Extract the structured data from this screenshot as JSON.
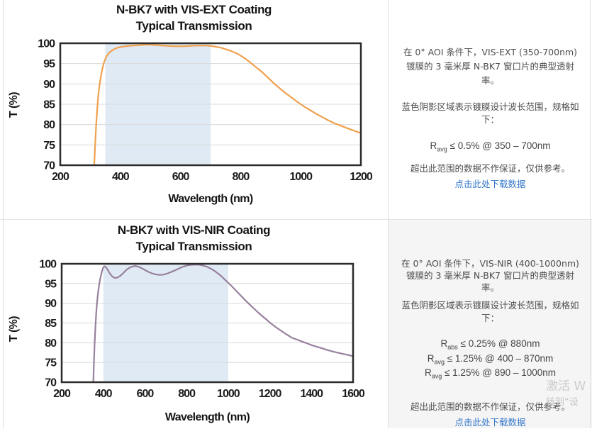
{
  "colors": {
    "chart1_line": "#F0A14F",
    "chart2_line": "#97819D",
    "design_band_shade": "#DFEAF5",
    "gridline": "#D9D9D9",
    "plot_border": "#2B2B2B",
    "link_blue": "#3377C9",
    "bottom_panel_bg": "#F5F5F6",
    "watermark_gray": "#CBCBCB"
  },
  "info_top": {
    "description": "在 0° AOI 条件下，VIS-EXT (350-700nm) 镀膜的 3 毫米厚 N-BK7 窗口片的典型透射率。",
    "shading_note": "蓝色阴影区域表示镀膜设计波长范围，规格如下：",
    "specs": [
      {
        "base": "R",
        "sub": "avg",
        "rest": " ≤ 0.5% @ 350 – 700nm"
      }
    ],
    "disclaimer": "超出此范围的数据不作保证，仅供参考。",
    "download_link": "点击此处下载数据"
  },
  "info_bottom": {
    "description": "在 0° AOI 条件下，VIS-NIR (400-1000nm) 镀膜的 3 毫米厚 N-BK7 窗口片的典型透射率。",
    "shading_note": "蓝色阴影区域表示镀膜设计波长范围，规格如下：",
    "specs": [
      {
        "base": "R",
        "sub": "abs",
        "rest": " ≤ 0.25% @ 880nm"
      },
      {
        "base": "R",
        "sub": "avg",
        "rest": " ≤ 1.25% @ 400 – 870nm"
      },
      {
        "base": "R",
        "sub": "avg",
        "rest": " ≤ 1.25% @ 890 – 1000nm"
      }
    ],
    "disclaimer": "超出此范围的数据不作保证，仅供参考。",
    "download_link": "点击此处下载数据"
  },
  "watermark": {
    "line1": "激活 W",
    "line2": "转到“设"
  },
  "chart_data": [
    {
      "type": "line",
      "title_line1": "N-BK7 with VIS-EXT Coating",
      "title_line2": "Typical Transmission",
      "xlabel": "Wavelength (nm)",
      "ylabel": "T (%)",
      "xlim": [
        200,
        1200
      ],
      "ylim": [
        70,
        100
      ],
      "x_ticks": [
        200,
        400,
        600,
        800,
        1000,
        1200
      ],
      "y_ticks": [
        70,
        75,
        80,
        85,
        90,
        95,
        100
      ],
      "grid": "horizontal-only",
      "design_range_nm": [
        350,
        700
      ],
      "shade_color": "#DFEAF5",
      "line_color": "#F0A14F",
      "series": [
        {
          "name": "N-BK7 VIS-EXT coated window, typical transmission",
          "points": [
            [
              313,
              70
            ],
            [
              316,
              75
            ],
            [
              319,
              79.5
            ],
            [
              323,
              84
            ],
            [
              327,
              87.5
            ],
            [
              332,
              90.5
            ],
            [
              338,
              93
            ],
            [
              345,
              95.2
            ],
            [
              353,
              96.7
            ],
            [
              363,
              97.7
            ],
            [
              375,
              98.4
            ],
            [
              390,
              98.9
            ],
            [
              410,
              99.2
            ],
            [
              435,
              99.4
            ],
            [
              460,
              99.5
            ],
            [
              480,
              99.65
            ],
            [
              500,
              99.65
            ],
            [
              520,
              99.55
            ],
            [
              545,
              99.4
            ],
            [
              570,
              99.3
            ],
            [
              595,
              99.25
            ],
            [
              620,
              99.3
            ],
            [
              645,
              99.4
            ],
            [
              670,
              99.45
            ],
            [
              690,
              99.4
            ],
            [
              705,
              99.3
            ],
            [
              720,
              99.1
            ],
            [
              735,
              98.9
            ],
            [
              750,
              98.55
            ],
            [
              770,
              98.05
            ],
            [
              790,
              97.4
            ],
            [
              810,
              96.5
            ],
            [
              830,
              95.4
            ],
            [
              850,
              94.2
            ],
            [
              870,
              93
            ],
            [
              890,
              91.6
            ],
            [
              910,
              90.2
            ],
            [
              930,
              88.9
            ],
            [
              950,
              87.7
            ],
            [
              970,
              86.6
            ],
            [
              990,
              85.5
            ],
            [
              1010,
              84.5
            ],
            [
              1030,
              83.6
            ],
            [
              1050,
              82.7
            ],
            [
              1070,
              81.9
            ],
            [
              1090,
              81.1
            ],
            [
              1110,
              80.4
            ],
            [
              1130,
              79.8
            ],
            [
              1155,
              79.1
            ],
            [
              1180,
              78.4
            ],
            [
              1200,
              77.9
            ]
          ]
        }
      ]
    },
    {
      "type": "line",
      "title_line1": "N-BK7 with VIS-NIR Coating",
      "title_line2": "Typical Transmission",
      "xlabel": "Wavelength (nm)",
      "ylabel": "T (%)",
      "xlim": [
        200,
        1600
      ],
      "ylim": [
        70,
        100
      ],
      "x_ticks": [
        200,
        400,
        600,
        800,
        1000,
        1200,
        1400,
        1600
      ],
      "y_ticks": [
        70,
        75,
        80,
        85,
        90,
        95,
        100
      ],
      "grid": "horizontal-only",
      "design_range_nm": [
        400,
        1000
      ],
      "shade_color": "#DFEAF5",
      "line_color": "#97819D",
      "series": [
        {
          "name": "N-BK7 VIS-NIR coated window, typical transmission",
          "points": [
            [
              352,
              70
            ],
            [
              355,
              75
            ],
            [
              358,
              79.5
            ],
            [
              362,
              84
            ],
            [
              366,
              87.5
            ],
            [
              370,
              90.3
            ],
            [
              375,
              92.8
            ],
            [
              380,
              94.7
            ],
            [
              386,
              96.4
            ],
            [
              393,
              98
            ],
            [
              399,
              99
            ],
            [
              406,
              99.35
            ],
            [
              413,
              99.1
            ],
            [
              422,
              98.4
            ],
            [
              432,
              97.5
            ],
            [
              443,
              96.8
            ],
            [
              455,
              96.4
            ],
            [
              467,
              96.5
            ],
            [
              480,
              96.9
            ],
            [
              495,
              97.6
            ],
            [
              510,
              98.4
            ],
            [
              525,
              99
            ],
            [
              540,
              99.3
            ],
            [
              553,
              99.45
            ],
            [
              566,
              99.3
            ],
            [
              580,
              99
            ],
            [
              597,
              98.5
            ],
            [
              615,
              98
            ],
            [
              633,
              97.6
            ],
            [
              652,
              97.3
            ],
            [
              670,
              97.2
            ],
            [
              688,
              97.25
            ],
            [
              706,
              97.5
            ],
            [
              725,
              97.9
            ],
            [
              745,
              98.35
            ],
            [
              765,
              98.85
            ],
            [
              785,
              99.3
            ],
            [
              805,
              99.6
            ],
            [
              825,
              99.75
            ],
            [
              845,
              99.8
            ],
            [
              862,
              99.75
            ],
            [
              880,
              99.55
            ],
            [
              898,
              99.25
            ],
            [
              916,
              98.8
            ],
            [
              934,
              98.2
            ],
            [
              952,
              97.5
            ],
            [
              970,
              96.7
            ],
            [
              988,
              95.8
            ],
            [
              1006,
              94.9
            ],
            [
              1025,
              93.9
            ],
            [
              1045,
              92.8
            ],
            [
              1065,
              91.7
            ],
            [
              1085,
              90.6
            ],
            [
              1105,
              89.6
            ],
            [
              1125,
              88.6
            ],
            [
              1145,
              87.6
            ],
            [
              1165,
              86.7
            ],
            [
              1185,
              85.8
            ],
            [
              1205,
              84.9
            ],
            [
              1230,
              83.9
            ],
            [
              1255,
              83
            ],
            [
              1280,
              82.1
            ],
            [
              1305,
              81.3
            ],
            [
              1330,
              80.8
            ],
            [
              1355,
              80.3
            ],
            [
              1380,
              79.8
            ],
            [
              1400,
              79.4
            ],
            [
              1425,
              79
            ],
            [
              1450,
              78.6
            ],
            [
              1475,
              78.2
            ],
            [
              1500,
              77.8
            ],
            [
              1525,
              77.5
            ],
            [
              1550,
              77.2
            ],
            [
              1575,
              76.9
            ],
            [
              1600,
              76.6
            ]
          ]
        }
      ]
    }
  ]
}
